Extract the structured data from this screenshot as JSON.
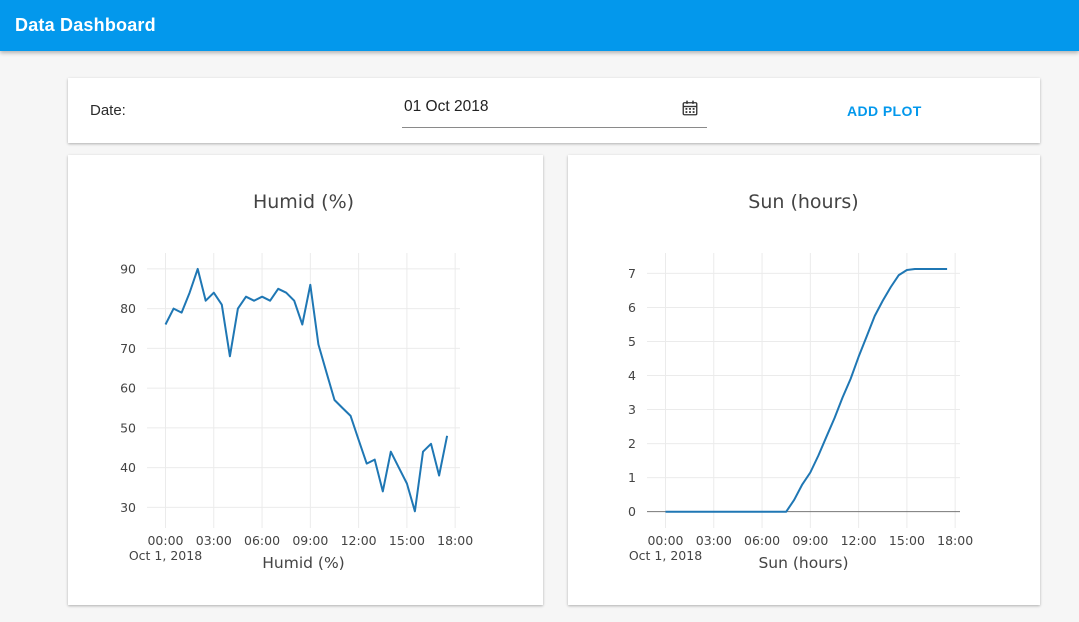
{
  "header": {
    "title": "Data Dashboard"
  },
  "controls": {
    "date_label": "Date:",
    "date_value": "01 Oct 2018",
    "calendar_icon": "calendar-icon",
    "add_plot_label": "ADD PLOT"
  },
  "colors": {
    "header_bg": "#0398ec",
    "accent": "#0398ec",
    "line": "#1f77b4",
    "grid": "#ebebeb",
    "zeroline": "#777777",
    "chart_text": "#444444"
  },
  "chart_data": [
    {
      "type": "line",
      "name": "humid-chart",
      "title": "Humid (%)",
      "xlabel": "Humid (%)",
      "x_annotation": "Oct 1, 2018",
      "grid": true,
      "zeroline": false,
      "legend": "none",
      "xlim": [
        -1.15,
        18.3
      ],
      "ylim": [
        24.8,
        94
      ],
      "x_ticks": [
        0,
        3,
        6,
        9,
        12,
        15,
        18
      ],
      "x_tick_labels": [
        "00:00",
        "03:00",
        "06:00",
        "09:00",
        "12:00",
        "15:00",
        "18:00"
      ],
      "y_ticks": [
        30,
        40,
        50,
        60,
        70,
        80,
        90
      ],
      "x": [
        0,
        0.5,
        1,
        1.5,
        2,
        2.5,
        3,
        3.5,
        4,
        4.5,
        5,
        5.5,
        6,
        6.5,
        7,
        7.5,
        8,
        8.5,
        9,
        9.5,
        10,
        10.5,
        11,
        11.5,
        12,
        12.5,
        13,
        13.5,
        14,
        14.5,
        15,
        15.5,
        16,
        16.5,
        17,
        17.5
      ],
      "values": [
        76,
        80,
        79,
        84,
        90,
        82,
        84,
        81,
        68,
        80,
        83,
        82,
        83,
        82,
        85,
        84,
        82,
        76,
        86,
        71,
        64,
        57,
        55,
        53,
        47,
        41,
        42,
        34,
        44,
        40,
        36,
        29,
        44,
        46,
        38,
        48
      ]
    },
    {
      "type": "line",
      "name": "sun-chart",
      "title": "Sun (hours)",
      "xlabel": "Sun (hours)",
      "x_annotation": "Oct 1, 2018",
      "grid": true,
      "zeroline": true,
      "legend": "none",
      "xlim": [
        -1.15,
        18.3
      ],
      "ylim": [
        -0.48,
        7.6
      ],
      "x_ticks": [
        0,
        3,
        6,
        9,
        12,
        15,
        18
      ],
      "x_tick_labels": [
        "00:00",
        "03:00",
        "06:00",
        "09:00",
        "12:00",
        "15:00",
        "18:00"
      ],
      "y_ticks": [
        0,
        1,
        2,
        3,
        4,
        5,
        6,
        7
      ],
      "x": [
        0,
        0.5,
        1,
        1.5,
        2,
        2.5,
        3,
        3.5,
        4,
        4.5,
        5,
        5.5,
        6,
        6.5,
        7,
        7.5,
        8,
        8.5,
        9,
        9.5,
        10,
        10.5,
        11,
        11.5,
        12,
        12.5,
        13,
        13.5,
        14,
        14.5,
        15,
        15.5,
        16,
        16.5,
        17,
        17.5
      ],
      "values": [
        0,
        0,
        0,
        0,
        0,
        0,
        0,
        0,
        0,
        0,
        0,
        0,
        0,
        0,
        0,
        0,
        0.35,
        0.8,
        1.15,
        1.65,
        2.2,
        2.75,
        3.35,
        3.9,
        4.55,
        5.15,
        5.75,
        6.2,
        6.6,
        6.95,
        7.1,
        7.13,
        7.13,
        7.13,
        7.13,
        7.13
      ]
    }
  ]
}
